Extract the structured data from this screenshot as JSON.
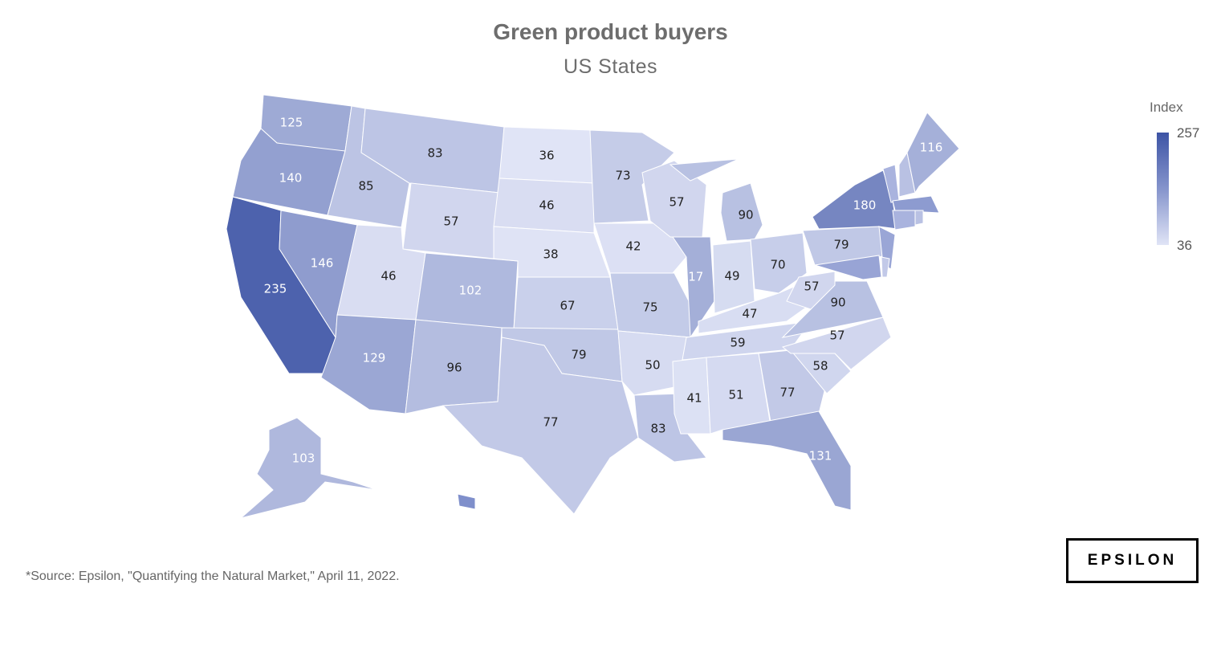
{
  "chart_data": {
    "type": "choropleth",
    "title": "Green product buyers",
    "subtitle": "US States",
    "legend": {
      "title": "Index",
      "max": "257",
      "min": "36",
      "placement": "right",
      "color_low": "#e0e4f6",
      "color_high": "#3d54a5"
    },
    "states": {
      "WA": 125,
      "OR": 140,
      "CA": 235,
      "NV": 146,
      "ID": 85,
      "MT": 83,
      "WY": 57,
      "UT": 46,
      "CO": 102,
      "AZ": 129,
      "NM": 96,
      "ND": 36,
      "SD": 46,
      "NE": 38,
      "KS": 67,
      "OK": 79,
      "TX": 77,
      "MN": 73,
      "IA": 42,
      "MO": 75,
      "AR": 50,
      "LA": 83,
      "WI": 57,
      "IL": 117,
      "MI": 90,
      "IN": 49,
      "OH": 70,
      "KY": 47,
      "TN": 59,
      "MS": 41,
      "AL": 51,
      "GA": 77,
      "FL": 131,
      "SC": 58,
      "NC": 57,
      "VA": 90,
      "WV": 57,
      "PA": 79,
      "NY": 180,
      "ME": 116,
      "AK": 103
    },
    "unlabeled_state_colors": {
      "VT": "#a9b3de",
      "NH": "#b9c1e3",
      "MA": "#8d9bd0",
      "CT": "#a9b3de",
      "RI": "#b9c1e3",
      "NJ": "#9aa6d6",
      "MD": "#98a4d5",
      "DE": "#c2c9e8",
      "HI": "#7f8fcb"
    }
  },
  "source": "*Source: Epsilon, \"Quantifying the Natural Market,\" April 11, 2022.",
  "logo": "EPSILON"
}
